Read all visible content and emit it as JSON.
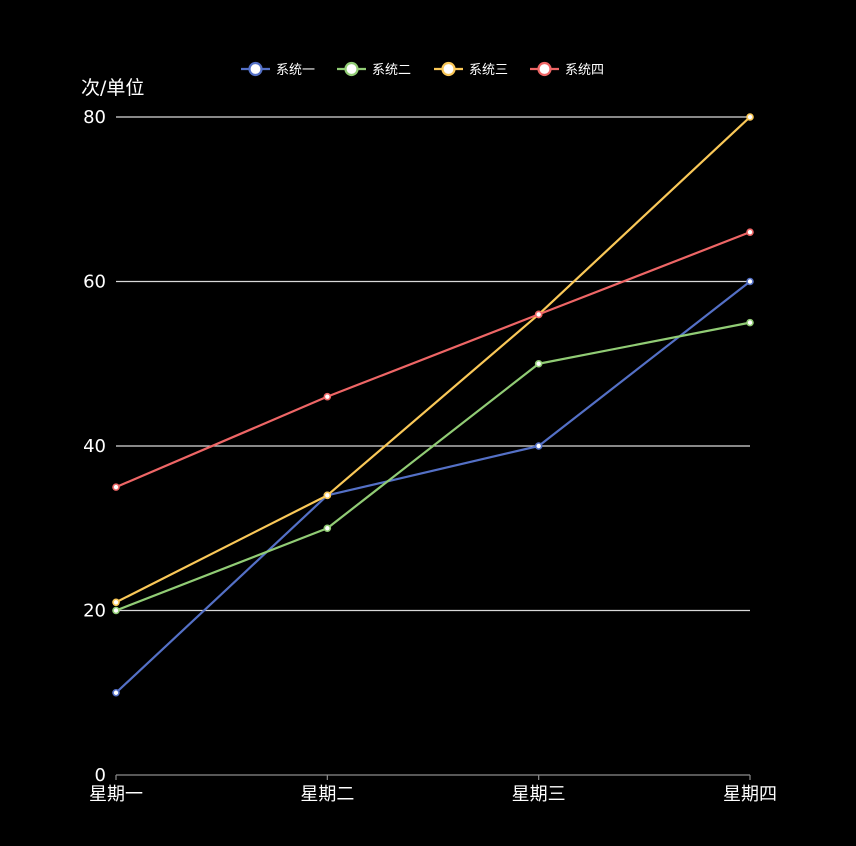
{
  "chart_data": {
    "type": "line",
    "title": "",
    "xlabel": "",
    "ylabel": "次/单位",
    "categories": [
      "星期一",
      "星期二",
      "星期三",
      "星期四"
    ],
    "ylim": [
      0,
      80
    ],
    "yticks": [
      0,
      20,
      40,
      60,
      80
    ],
    "grid": true,
    "legend_position": "top-center",
    "series": [
      {
        "name": "系统一",
        "color": "#5470c6",
        "values": [
          10,
          34,
          40,
          60
        ]
      },
      {
        "name": "系统二",
        "color": "#91cc75",
        "values": [
          20,
          30,
          50,
          55
        ]
      },
      {
        "name": "系统三",
        "color": "#fac858",
        "values": [
          21,
          34,
          56,
          80
        ]
      },
      {
        "name": "系统四",
        "color": "#ee6666",
        "values": [
          35,
          46,
          56,
          66
        ]
      }
    ]
  }
}
